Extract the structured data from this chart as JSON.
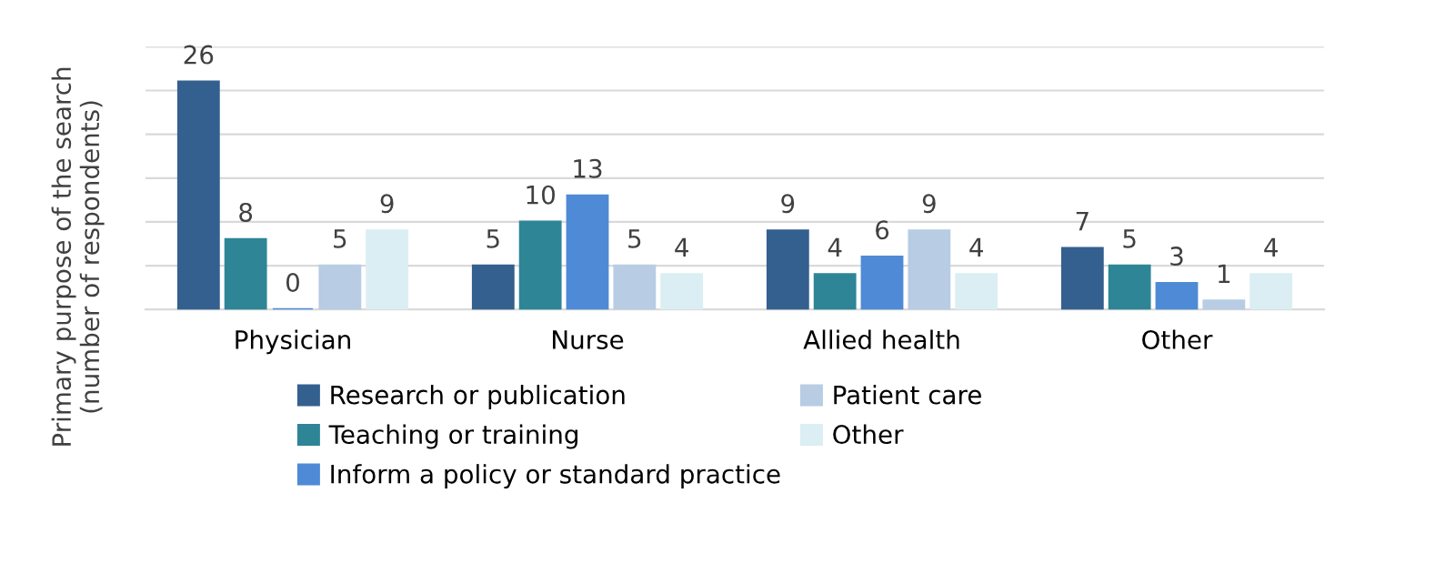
{
  "chart_data": {
    "type": "bar",
    "ylabel": "Primary purpose of the search\n(number of respondents)",
    "categories": [
      "Physician",
      "Nurse",
      "Allied health",
      "Other"
    ],
    "series": [
      {
        "name": "Research or publication",
        "color": "#34608f",
        "values": [
          26,
          5,
          9,
          7
        ]
      },
      {
        "name": "Teaching or training",
        "color": "#2e8596",
        "values": [
          8,
          10,
          4,
          5
        ]
      },
      {
        "name": "Inform a policy or standard practice",
        "color": "#4f8ad6",
        "values": [
          0,
          13,
          6,
          3
        ]
      },
      {
        "name": "Patient care",
        "color": "#b8cce4",
        "values": [
          5,
          5,
          9,
          1
        ]
      },
      {
        "name": "Other",
        "color": "#dbeef4",
        "values": [
          9,
          4,
          4,
          4
        ]
      }
    ],
    "ylim": [
      0,
      30
    ],
    "yticks": [
      {
        "value": 0,
        "label": null
      },
      {
        "value": 5,
        "label": null
      },
      {
        "value": 10,
        "label": null
      },
      {
        "value": 15,
        "label": null
      },
      {
        "value": 20,
        "label": null
      },
      {
        "value": 25,
        "label": null
      },
      {
        "value": 30,
        "label": null
      }
    ],
    "tick_labels": "x",
    "grid": "y",
    "legend": "bottom",
    "data_labels": true
  }
}
